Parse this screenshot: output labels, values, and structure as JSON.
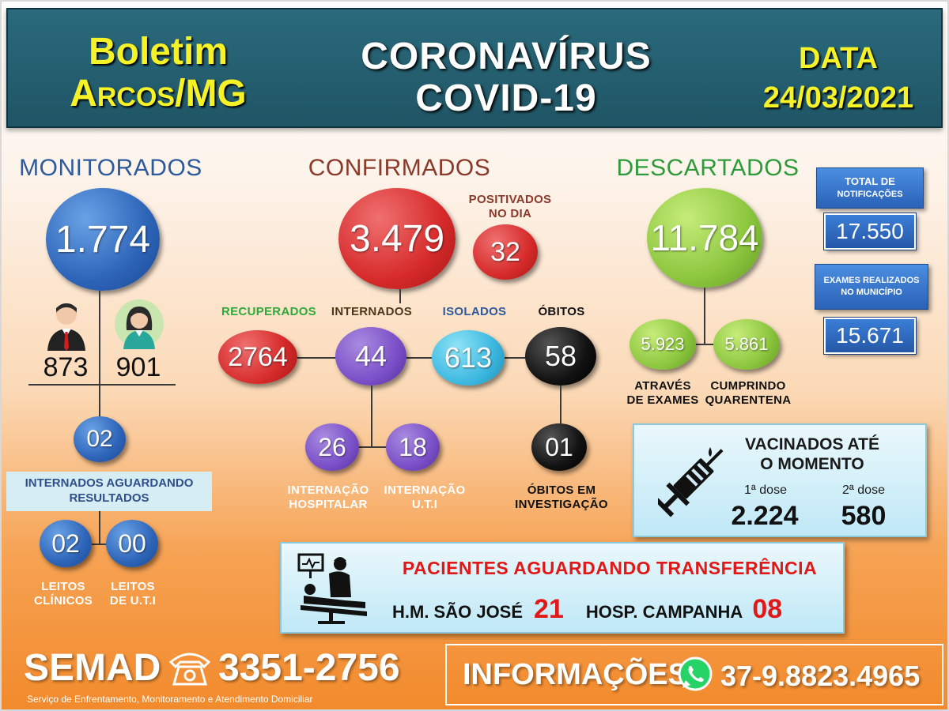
{
  "header": {
    "title_left_line1": "Boletim",
    "title_left_line2": "Arcos/MG",
    "title_mid_line1": "CORONAVÍRUS",
    "title_mid_line2": "COVID-19",
    "date_label": "DATA",
    "date_value": "24/03/2021"
  },
  "monitorados": {
    "title": "MONITORADOS",
    "total": "1.774",
    "male": "873",
    "female": "901",
    "internados_aguardando": "02",
    "internados_label": "INTERNADOS AGUARDANDO RESULTADOS",
    "leitos_clinicos": "02",
    "leitos_uti": "00",
    "leitos_clinicos_label_1": "LEITOS",
    "leitos_clinicos_label_2": "CLÍNICOS",
    "leitos_uti_label_1": "LEITOS",
    "leitos_uti_label_2": "DE U.T.I"
  },
  "confirmados": {
    "title": "CONFIRMADOS",
    "total": "3.479",
    "positivos_label_1": "POSITIVADOS",
    "positivos_label_2": "NO DIA",
    "positivos_dia": "32",
    "recuperados_label": "RECUPERADOS",
    "recuperados": "2764",
    "internados_label": "INTERNADOS",
    "internados": "44",
    "isolados_label": "ISOLADOS",
    "isolados": "613",
    "obitos_label": "ÓBITOS",
    "obitos": "58",
    "internacao_hosp": "26",
    "internacao_uti": "18",
    "internacao_hosp_label_1": "INTERNAÇÃO",
    "internacao_hosp_label_2": "HOSPITALAR",
    "internacao_uti_label_1": "INTERNAÇÃO",
    "internacao_uti_label_2": "U.T.I",
    "obitos_investigacao": "01",
    "obitos_investigacao_label_1": "ÓBITOS EM",
    "obitos_investigacao_label_2": "INVESTIGAÇÃO"
  },
  "descartados": {
    "title": "DESCARTADOS",
    "total": "11.784",
    "exames": "5.923",
    "quarentena": "5.861",
    "exames_label_1": "ATRAVÉS",
    "exames_label_2": "DE EXAMES",
    "quarentena_label_1": "CUMPRINDO",
    "quarentena_label_2": "QUARENTENA"
  },
  "totais": {
    "notificacoes_label_1": "TOTAL DE",
    "notificacoes_label_2": "NOTIFICAÇÕES",
    "notificacoes": "17.550",
    "exames_label_1": "EXAMES REALIZADOS",
    "exames_label_2": "NO MUNICÍPIO",
    "exames": "15.671"
  },
  "vacinados": {
    "title_1": "VACINADOS ATÉ",
    "title_2": "O MOMENTO",
    "dose1_label": "1ª dose",
    "dose2_label": "2ª dose",
    "dose1": "2.224",
    "dose2": "580"
  },
  "transferencia": {
    "title": "PACIENTES AGUARDANDO TRANSFERÊNCIA",
    "hm_label": "H.M. SÃO JOSÉ",
    "hm_value": "21",
    "campanha_label": "HOSP. CAMPANHA",
    "campanha_value": "08"
  },
  "footer": {
    "semad": "SEMAD",
    "semad_phone": "3351-2756",
    "semad_desc": "Serviço de Enfrentamento, Monitoramento e Atendimento Domiciliar",
    "info_label": "INFORMAÇÕES",
    "info_phone": "37-9.8823.4965"
  },
  "colors": {
    "header_bg": "#1f5565",
    "yellow": "#f6f228",
    "monitorados": "#2e5a9c",
    "confirmados": "#8a3a2a",
    "descartados": "#2e9a3c",
    "recuperados": "#2eaa3c",
    "alert_red": "#e01818"
  },
  "icons": [
    "man-icon",
    "woman-icon",
    "syringe-icon",
    "phone-icon",
    "whatsapp-icon",
    "hospital-bed-icon"
  ]
}
